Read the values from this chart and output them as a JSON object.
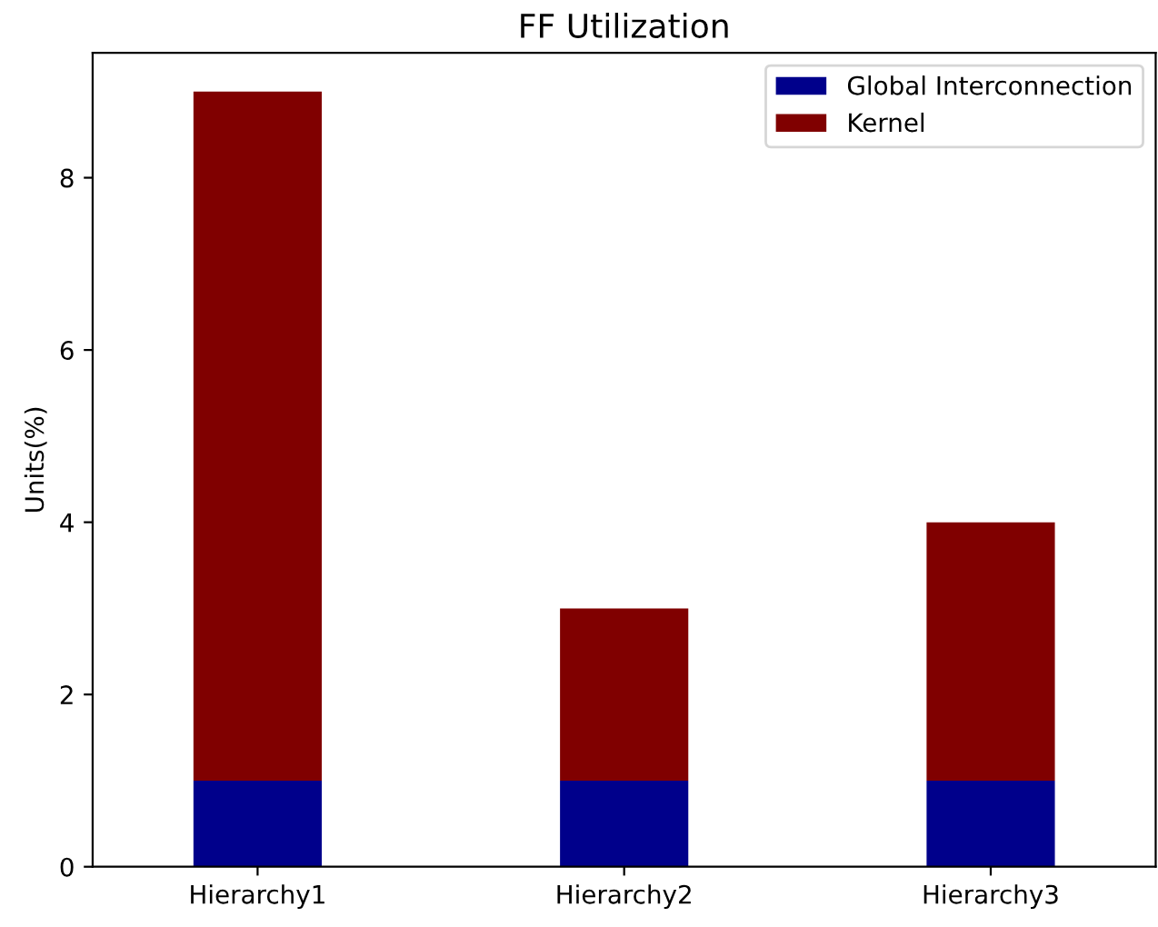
{
  "chart_data": {
    "type": "bar",
    "title": "FF Utilization",
    "ylabel": "Units(%)",
    "stacked": true,
    "categories": [
      "Hierarchy1",
      "Hierarchy2",
      "Hierarchy3"
    ],
    "series": [
      {
        "name": "Global Interconnection",
        "color": "#00008b",
        "values": [
          1,
          1,
          1
        ]
      },
      {
        "name": "Kernel",
        "color": "#800000",
        "values": [
          8,
          2,
          3
        ]
      }
    ],
    "ylim": [
      0,
      9.45
    ],
    "yticks": [
      0,
      2,
      4,
      6,
      8
    ],
    "grid": false,
    "legend": "top right"
  }
}
